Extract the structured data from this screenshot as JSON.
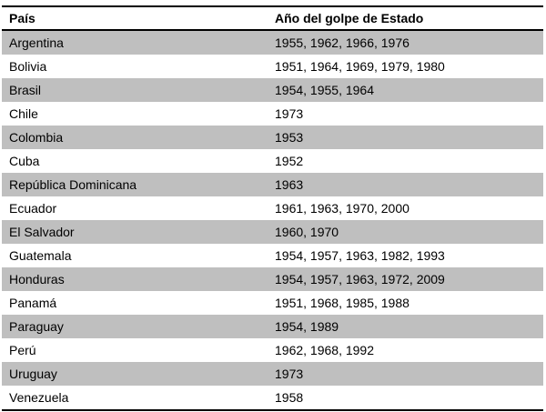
{
  "table": {
    "columns": [
      {
        "key": "country",
        "label": "País"
      },
      {
        "key": "years",
        "label": "Año del golpe de Estado"
      }
    ],
    "rows": [
      {
        "country": "Argentina",
        "years": "1955, 1962, 1966, 1976"
      },
      {
        "country": "Bolivia",
        "years": "1951, 1964, 1969, 1979, 1980"
      },
      {
        "country": "Brasil",
        "years": "1954, 1955, 1964"
      },
      {
        "country": "Chile",
        "years": "1973"
      },
      {
        "country": "Colombia",
        "years": "1953"
      },
      {
        "country": "Cuba",
        "years": "1952"
      },
      {
        "country": "República Dominicana",
        "years": "1963"
      },
      {
        "country": "Ecuador",
        "years": "1961, 1963, 1970, 2000"
      },
      {
        "country": "El Salvador",
        "years": "1960, 1970"
      },
      {
        "country": "Guatemala",
        "years": "1954, 1957, 1963, 1982, 1993"
      },
      {
        "country": "Honduras",
        "years": "1954, 1957, 1963, 1972, 2009"
      },
      {
        "country": "Panamá",
        "years": "1951, 1968, 1985, 1988"
      },
      {
        "country": "Paraguay",
        "years": "1954, 1989"
      },
      {
        "country": "Perú",
        "years": "1962, 1968, 1992"
      },
      {
        "country": "Uruguay",
        "years": "1973"
      },
      {
        "country": "Venezuela",
        "years": "1958"
      }
    ]
  },
  "colors": {
    "stripe": "#bfbfbf",
    "border": "#000000",
    "text": "#000000",
    "background": "#ffffff"
  }
}
